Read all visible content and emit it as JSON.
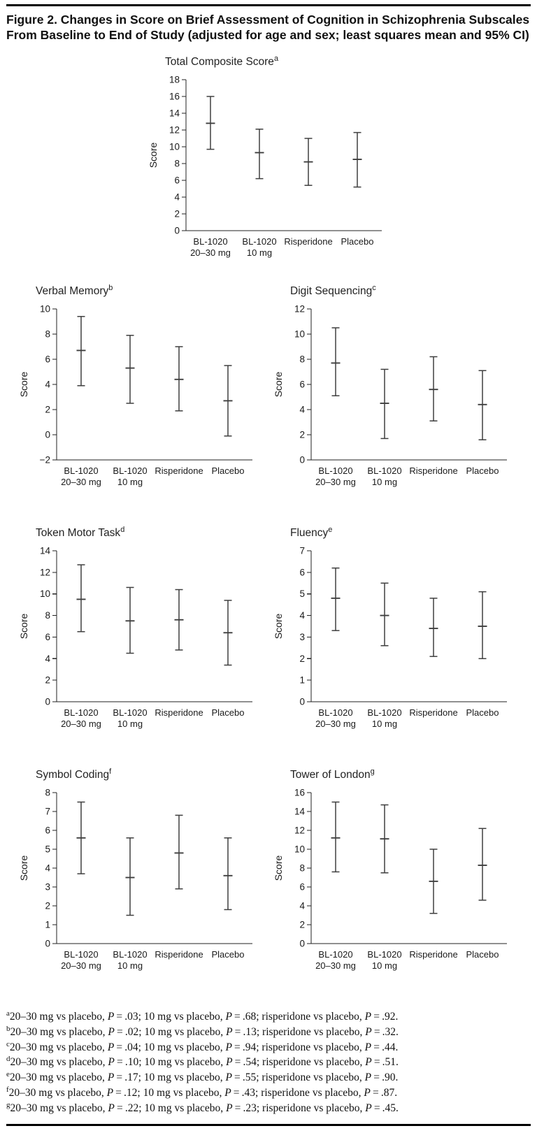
{
  "figure_title": "Figure 2. Changes in Score on Brief Assessment of Cognition in Schizophrenia Subscales From Baseline to End of Study (adjusted for age and sex; least squares mean and 95% CI)",
  "chart_data": [
    {
      "type": "errorbar",
      "title": "Total Composite Score",
      "sup": "a",
      "ylabel": "Score",
      "ymin": 0,
      "ymax": 18,
      "ystep": 2,
      "categories": [
        [
          "BL-1020",
          "20–30 mg"
        ],
        [
          "BL-1020",
          "10 mg"
        ],
        [
          "Risperidone"
        ],
        [
          "Placebo"
        ]
      ],
      "points": [
        {
          "mean": 12.8,
          "lo": 9.7,
          "hi": 16.0
        },
        {
          "mean": 9.3,
          "lo": 6.2,
          "hi": 12.1
        },
        {
          "mean": 8.2,
          "lo": 5.4,
          "hi": 11.0
        },
        {
          "mean": 8.5,
          "lo": 5.2,
          "hi": 11.7
        }
      ]
    },
    {
      "type": "errorbar",
      "title": "Verbal Memory",
      "sup": "b",
      "ylabel": "Score",
      "ymin": -2,
      "ymax": 10,
      "ystep": 2,
      "categories": [
        [
          "BL-1020",
          "20–30 mg"
        ],
        [
          "BL-1020",
          "10 mg"
        ],
        [
          "Risperidone"
        ],
        [
          "Placebo"
        ]
      ],
      "points": [
        {
          "mean": 6.7,
          "lo": 3.9,
          "hi": 9.4
        },
        {
          "mean": 5.3,
          "lo": 2.5,
          "hi": 7.9
        },
        {
          "mean": 4.4,
          "lo": 1.9,
          "hi": 7.0
        },
        {
          "mean": 2.7,
          "lo": -0.1,
          "hi": 5.5
        }
      ]
    },
    {
      "type": "errorbar",
      "title": "Digit Sequencing",
      "sup": "c",
      "ylabel": "Score",
      "ymin": 0,
      "ymax": 12,
      "ystep": 2,
      "categories": [
        [
          "BL-1020",
          "20–30 mg"
        ],
        [
          "BL-1020",
          "10 mg"
        ],
        [
          "Risperidone"
        ],
        [
          "Placebo"
        ]
      ],
      "points": [
        {
          "mean": 7.7,
          "lo": 5.1,
          "hi": 10.5
        },
        {
          "mean": 4.5,
          "lo": 1.7,
          "hi": 7.2
        },
        {
          "mean": 5.6,
          "lo": 3.1,
          "hi": 8.2
        },
        {
          "mean": 4.4,
          "lo": 1.6,
          "hi": 7.1
        }
      ]
    },
    {
      "type": "errorbar",
      "title": "Token Motor Task",
      "sup": "d",
      "ylabel": "Score",
      "ymin": 0,
      "ymax": 14,
      "ystep": 2,
      "categories": [
        [
          "BL-1020",
          "20–30 mg"
        ],
        [
          "BL-1020",
          "10 mg"
        ],
        [
          "Risperidone"
        ],
        [
          "Placebo"
        ]
      ],
      "points": [
        {
          "mean": 9.5,
          "lo": 6.5,
          "hi": 12.7
        },
        {
          "mean": 7.5,
          "lo": 4.5,
          "hi": 10.6
        },
        {
          "mean": 7.6,
          "lo": 4.8,
          "hi": 10.4
        },
        {
          "mean": 6.4,
          "lo": 3.4,
          "hi": 9.4
        }
      ]
    },
    {
      "type": "errorbar",
      "title": "Fluency",
      "sup": "e",
      "ylabel": "Score",
      "ymin": 0,
      "ymax": 7,
      "ystep": 1,
      "categories": [
        [
          "BL-1020",
          "20–30 mg"
        ],
        [
          "BL-1020",
          "10 mg"
        ],
        [
          "Risperidone"
        ],
        [
          "Placebo"
        ]
      ],
      "points": [
        {
          "mean": 4.8,
          "lo": 3.3,
          "hi": 6.2
        },
        {
          "mean": 4.0,
          "lo": 2.6,
          "hi": 5.5
        },
        {
          "mean": 3.4,
          "lo": 2.1,
          "hi": 4.8
        },
        {
          "mean": 3.5,
          "lo": 2.0,
          "hi": 5.1
        }
      ]
    },
    {
      "type": "errorbar",
      "title": "Symbol Coding",
      "sup": "f",
      "ylabel": "Score",
      "ymin": 0,
      "ymax": 8,
      "ystep": 1,
      "categories": [
        [
          "BL-1020",
          "20–30 mg"
        ],
        [
          "BL-1020",
          "10 mg"
        ],
        [
          "Risperidone"
        ],
        [
          "Placebo"
        ]
      ],
      "points": [
        {
          "mean": 5.6,
          "lo": 3.7,
          "hi": 7.5
        },
        {
          "mean": 3.5,
          "lo": 1.5,
          "hi": 5.6
        },
        {
          "mean": 4.8,
          "lo": 2.9,
          "hi": 6.8
        },
        {
          "mean": 3.6,
          "lo": 1.8,
          "hi": 5.6
        }
      ]
    },
    {
      "type": "errorbar",
      "title": "Tower of London",
      "sup": "g",
      "ylabel": "Score",
      "ymin": 0,
      "ymax": 16,
      "ystep": 2,
      "categories": [
        [
          "BL-1020",
          "20–30 mg"
        ],
        [
          "BL-1020",
          "10 mg"
        ],
        [
          "Risperidone"
        ],
        [
          "Placebo"
        ]
      ],
      "points": [
        {
          "mean": 11.2,
          "lo": 7.6,
          "hi": 15.0
        },
        {
          "mean": 11.1,
          "lo": 7.5,
          "hi": 14.7
        },
        {
          "mean": 6.6,
          "lo": 3.2,
          "hi": 10.0
        },
        {
          "mean": 8.3,
          "lo": 4.6,
          "hi": 12.2
        }
      ]
    }
  ],
  "footnotes": [
    {
      "sup": "a",
      "text": "20–30 mg vs placebo, P = .03; 10 mg vs placebo, P = .68; risperidone vs placebo, P = .92."
    },
    {
      "sup": "b",
      "text": "20–30 mg vs placebo, P = .02; 10 mg vs placebo, P = .13; risperidone vs placebo, P = .32."
    },
    {
      "sup": "c",
      "text": "20–30 mg vs placebo, P = .04; 10 mg vs placebo, P = .94; risperidone vs placebo, P = .44."
    },
    {
      "sup": "d",
      "text": "20–30 mg vs placebo, P = .10; 10 mg vs placebo, P = .54; risperidone vs placebo, P = .51."
    },
    {
      "sup": "e",
      "text": "20–30 mg vs placebo, P = .17; 10 mg vs placebo, P = .55; risperidone vs placebo, P = .90."
    },
    {
      "sup": "f",
      "text": "20–30 mg vs placebo, P = .12; 10 mg vs placebo, P = .43; risperidone vs placebo, P = .87."
    },
    {
      "sup": "g",
      "text": "20–30 mg vs placebo, P = .22; 10 mg vs placebo, P = .23; risperidone vs placebo, P = .45."
    }
  ]
}
